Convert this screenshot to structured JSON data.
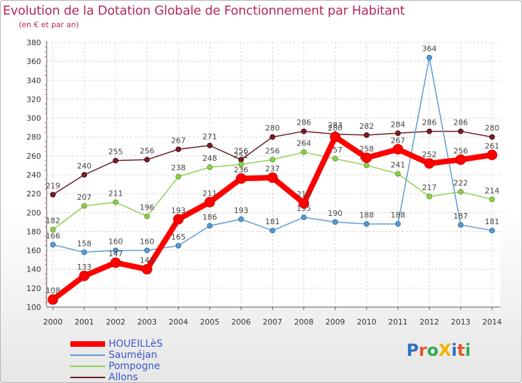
{
  "title": "Evolution de la Dotation Globale de Fonctionnement par Habitant",
  "subtitle": "(en € et par an)",
  "logo_text": "ProXiti",
  "chart_data": {
    "type": "line",
    "title": "Evolution de la Dotation Globale de Fonctionnement par Habitant",
    "subtitle": "(en € et par an)",
    "xlabel": "",
    "ylabel": "",
    "x": [
      "2000",
      "2001",
      "2002",
      "2003",
      "2004",
      "2005",
      "2006",
      "2007",
      "2008",
      "2009",
      "2010",
      "2011",
      "2012",
      "2013",
      "2014"
    ],
    "ylim": [
      100,
      380
    ],
    "yticks": [
      100,
      120,
      140,
      160,
      180,
      200,
      220,
      240,
      260,
      280,
      300,
      320,
      340,
      360,
      380
    ],
    "grid": true,
    "legend_position": "bottom-left",
    "series": [
      {
        "name": "Allons",
        "color": "#6b1a1f",
        "values": [
          219,
          240,
          255,
          256,
          267,
          271,
          256,
          280,
          286,
          283,
          282,
          284,
          286,
          286,
          280
        ]
      },
      {
        "name": "Pompogne",
        "color": "#8fd14f",
        "values": [
          182,
          207,
          211,
          196,
          238,
          248,
          251,
          256,
          264,
          257,
          250,
          241,
          217,
          222,
          214
        ]
      },
      {
        "name": "Sauméjan",
        "color": "#5a9bd5",
        "values": [
          166,
          158,
          160,
          160,
          165,
          186,
          193,
          181,
          195,
          190,
          188,
          188,
          364,
          187,
          181
        ]
      },
      {
        "name": "HOUEILLèS",
        "color": "#ff0000",
        "values": [
          108,
          133,
          147,
          140,
          193,
          211,
          236,
          237,
          210,
          280,
          258,
          267,
          252,
          256,
          261
        ]
      }
    ],
    "legend_order": [
      "HOUEILLèS",
      "Sauméjan",
      "Pompogne",
      "Allons"
    ]
  }
}
